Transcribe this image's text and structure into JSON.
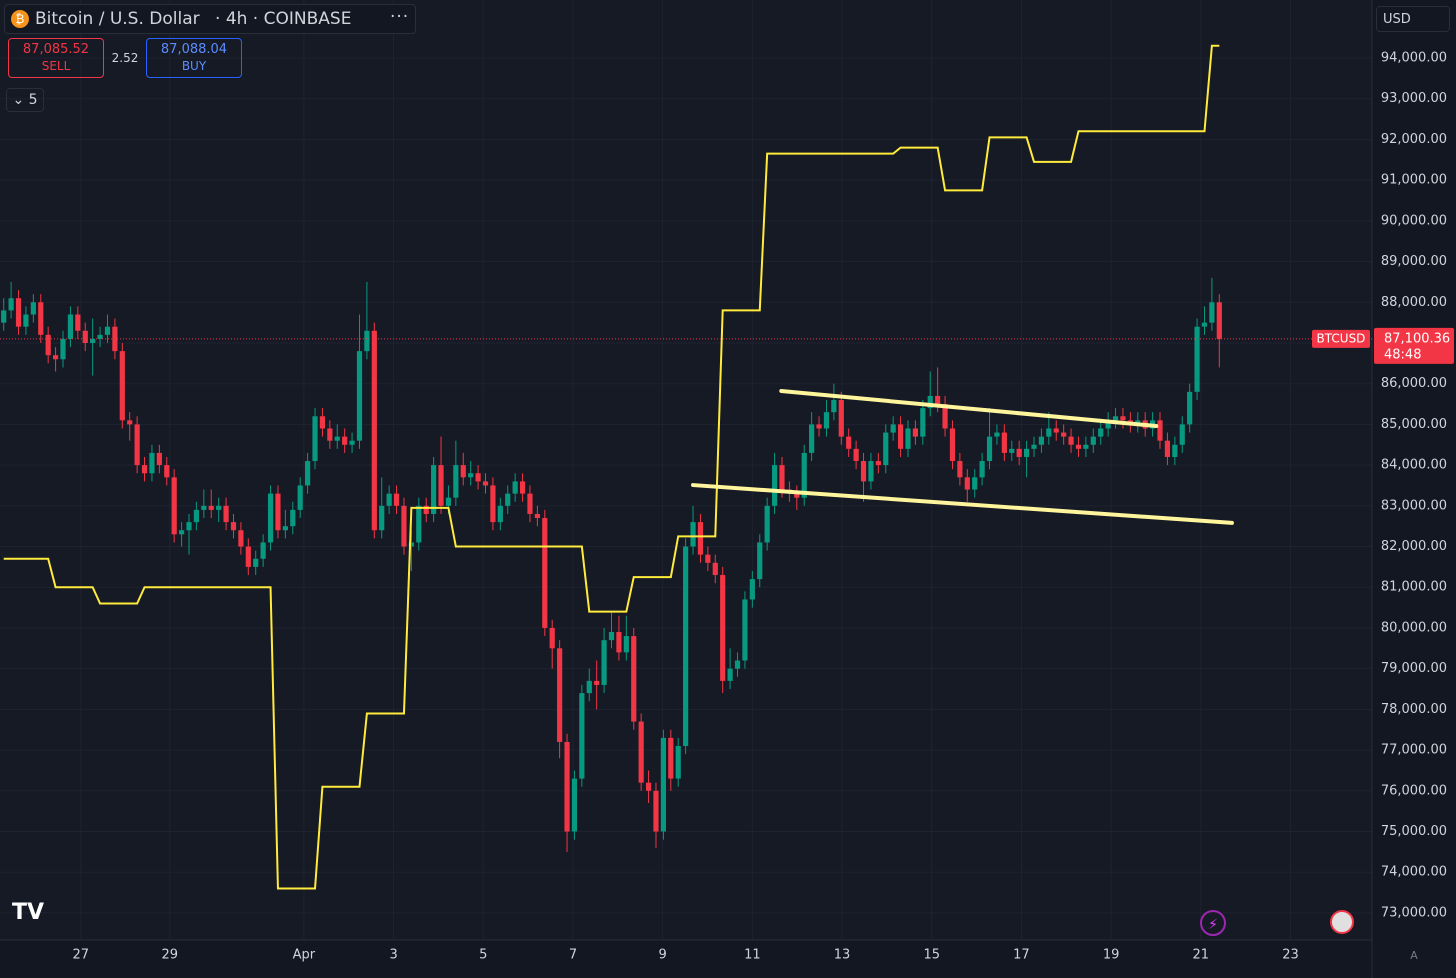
{
  "chart_data": {
    "type": "candlestick",
    "symbol_title": "Bitcoin / U.S. Dollar",
    "interval": "4h",
    "exchange": "COINBASE",
    "up_color": "#089981",
    "down_color": "#f23645",
    "grid": true,
    "xlim": [
      -0.5,
      184.6
    ],
    "ylim": [
      72335,
      95425
    ],
    "xticks": [
      {
        "value": 10.4,
        "label": "27"
      },
      {
        "value": 22.4,
        "label": "29"
      },
      {
        "value": 40.5,
        "label": "Apr"
      },
      {
        "value": 52.6,
        "label": "3"
      },
      {
        "value": 64.7,
        "label": "5"
      },
      {
        "value": 76.8,
        "label": "7"
      },
      {
        "value": 88.9,
        "label": "9"
      },
      {
        "value": 101,
        "label": "11"
      },
      {
        "value": 113.1,
        "label": "13"
      },
      {
        "value": 125.2,
        "label": "15"
      },
      {
        "value": 137.3,
        "label": "17"
      },
      {
        "value": 149.4,
        "label": "19"
      },
      {
        "value": 161.5,
        "label": "21"
      },
      {
        "value": 173.6,
        "label": "23"
      }
    ],
    "yticks": [
      {
        "value": 73000,
        "label": "73,000.00"
      },
      {
        "value": 74000,
        "label": "74,000.00"
      },
      {
        "value": 75000,
        "label": "75,000.00"
      },
      {
        "value": 76000,
        "label": "76,000.00"
      },
      {
        "value": 77000,
        "label": "77,000.00"
      },
      {
        "value": 78000,
        "label": "78,000.00"
      },
      {
        "value": 79000,
        "label": "79,000.00"
      },
      {
        "value": 80000,
        "label": "80,000.00"
      },
      {
        "value": 81000,
        "label": "81,000.00"
      },
      {
        "value": 82000,
        "label": "82,000.00"
      },
      {
        "value": 83000,
        "label": "83,000.00"
      },
      {
        "value": 84000,
        "label": "84,000.00"
      },
      {
        "value": 85000,
        "label": "85,000.00"
      },
      {
        "value": 86000,
        "label": "86,000.00"
      },
      {
        "value": 87000,
        "label": "87,000.00"
      },
      {
        "value": 88000,
        "label": "88,000.00"
      },
      {
        "value": 89000,
        "label": "89,000.00"
      },
      {
        "value": 90000,
        "label": "90,000.00"
      },
      {
        "value": 91000,
        "label": "91,000.00"
      },
      {
        "value": 92000,
        "label": "92,000.00"
      },
      {
        "value": 93000,
        "label": "93,000.00"
      },
      {
        "value": 94000,
        "label": "94,000.00"
      }
    ],
    "candles": [
      [
        87500,
        88100,
        87300,
        87800
      ],
      [
        87800,
        88500,
        87600,
        88100
      ],
      [
        88100,
        88300,
        87200,
        87400
      ],
      [
        87400,
        87900,
        87200,
        87700
      ],
      [
        87700,
        88200,
        87500,
        88000
      ],
      [
        88000,
        88200,
        87000,
        87200
      ],
      [
        87200,
        87400,
        86500,
        86700
      ],
      [
        86700,
        86900,
        86300,
        86600
      ],
      [
        86600,
        87300,
        86400,
        87100
      ],
      [
        87100,
        87900,
        86900,
        87700
      ],
      [
        87700,
        87900,
        87100,
        87300
      ],
      [
        87300,
        87500,
        86800,
        87000
      ],
      [
        87000,
        87600,
        86200,
        87100
      ],
      [
        87100,
        87400,
        86900,
        87200
      ],
      [
        87200,
        87700,
        87000,
        87400
      ],
      [
        87400,
        87600,
        86600,
        86800
      ],
      [
        86800,
        87000,
        84900,
        85100
      ],
      [
        85100,
        85300,
        84600,
        85000
      ],
      [
        85000,
        85200,
        83800,
        84000
      ],
      [
        84000,
        84200,
        83600,
        83800
      ],
      [
        83800,
        84500,
        83600,
        84300
      ],
      [
        84300,
        84500,
        83800,
        84000
      ],
      [
        84000,
        84200,
        83500,
        83700
      ],
      [
        83700,
        83900,
        82100,
        82300
      ],
      [
        82300,
        82600,
        82000,
        82400
      ],
      [
        82400,
        82800,
        81800,
        82600
      ],
      [
        82600,
        83100,
        82400,
        82900
      ],
      [
        82900,
        83400,
        82700,
        83000
      ],
      [
        83000,
        83400,
        82700,
        82900
      ],
      [
        82900,
        83200,
        82600,
        83000
      ],
      [
        83000,
        83200,
        82400,
        82600
      ],
      [
        82600,
        82800,
        82200,
        82400
      ],
      [
        82400,
        82600,
        81800,
        82000
      ],
      [
        82000,
        82200,
        81300,
        81500
      ],
      [
        81500,
        81900,
        81300,
        81700
      ],
      [
        81700,
        82300,
        81500,
        82100
      ],
      [
        82100,
        83500,
        81900,
        83300
      ],
      [
        83300,
        83500,
        82200,
        82400
      ],
      [
        82400,
        82900,
        82200,
        82500
      ],
      [
        82500,
        83100,
        82300,
        82900
      ],
      [
        82900,
        83700,
        82700,
        83500
      ],
      [
        83500,
        84300,
        83300,
        84100
      ],
      [
        84100,
        85400,
        83900,
        85200
      ],
      [
        85200,
        85400,
        84700,
        84900
      ],
      [
        84900,
        85100,
        84400,
        84600
      ],
      [
        84600,
        85000,
        84400,
        84700
      ],
      [
        84700,
        84900,
        84300,
        84500
      ],
      [
        84500,
        84800,
        84300,
        84600
      ],
      [
        84600,
        87700,
        84400,
        86800
      ],
      [
        86800,
        88500,
        86600,
        87300
      ],
      [
        87300,
        87500,
        82200,
        82400
      ],
      [
        82400,
        83700,
        82200,
        83000
      ],
      [
        83000,
        83500,
        82800,
        83300
      ],
      [
        83300,
        83500,
        82800,
        83000
      ],
      [
        83000,
        83200,
        81800,
        82000
      ],
      [
        82000,
        82400,
        81400,
        82100
      ],
      [
        82100,
        83200,
        81900,
        83000
      ],
      [
        83000,
        83200,
        82600,
        82800
      ],
      [
        82800,
        84200,
        82600,
        84000
      ],
      [
        84000,
        84700,
        82800,
        83000
      ],
      [
        83000,
        83500,
        82800,
        83200
      ],
      [
        83200,
        84600,
        83000,
        84000
      ],
      [
        84000,
        84300,
        83500,
        83700
      ],
      [
        83700,
        84100,
        83500,
        83800
      ],
      [
        83800,
        84000,
        83400,
        83600
      ],
      [
        83600,
        83800,
        83300,
        83500
      ],
      [
        83500,
        83700,
        82400,
        82600
      ],
      [
        82600,
        83200,
        82400,
        83000
      ],
      [
        83000,
        83500,
        82800,
        83300
      ],
      [
        83300,
        83800,
        83100,
        83600
      ],
      [
        83600,
        83800,
        83100,
        83300
      ],
      [
        83300,
        83500,
        82600,
        82800
      ],
      [
        82800,
        83000,
        82500,
        82700
      ],
      [
        82700,
        82900,
        79800,
        80000
      ],
      [
        80000,
        80200,
        79000,
        79500
      ],
      [
        79500,
        79700,
        76800,
        77200
      ],
      [
        77200,
        77400,
        74500,
        75000
      ],
      [
        75000,
        76500,
        74800,
        76300
      ],
      [
        76300,
        78600,
        76100,
        78400
      ],
      [
        78400,
        79000,
        78200,
        78700
      ],
      [
        78700,
        79200,
        78000,
        78600
      ],
      [
        78600,
        80000,
        78400,
        79700
      ],
      [
        79700,
        80400,
        79500,
        79900
      ],
      [
        79900,
        80300,
        79200,
        79400
      ],
      [
        79400,
        80300,
        79200,
        79800
      ],
      [
        79800,
        80000,
        77500,
        77700
      ],
      [
        77700,
        77900,
        76000,
        76200
      ],
      [
        76200,
        76500,
        75700,
        76000
      ],
      [
        76000,
        76200,
        74600,
        75000
      ],
      [
        75000,
        77500,
        74800,
        77300
      ],
      [
        77300,
        77500,
        76000,
        76300
      ],
      [
        76300,
        77300,
        76100,
        77100
      ],
      [
        77100,
        82200,
        76900,
        82000
      ],
      [
        82000,
        83000,
        81800,
        82600
      ],
      [
        82600,
        82800,
        81600,
        81800
      ],
      [
        81800,
        82000,
        81400,
        81600
      ],
      [
        81600,
        81800,
        81100,
        81300
      ],
      [
        81300,
        81500,
        78400,
        78700
      ],
      [
        78700,
        79500,
        78500,
        79000
      ],
      [
        79000,
        79400,
        78800,
        79200
      ],
      [
        79200,
        80900,
        79000,
        80700
      ],
      [
        80700,
        81400,
        80500,
        81200
      ],
      [
        81200,
        82300,
        81000,
        82100
      ],
      [
        82100,
        83200,
        81900,
        83000
      ],
      [
        83000,
        84300,
        82800,
        84000
      ],
      [
        84000,
        84200,
        83200,
        83400
      ],
      [
        83400,
        83600,
        83100,
        83300
      ],
      [
        83300,
        83500,
        82900,
        83200
      ],
      [
        83200,
        84500,
        83000,
        84300
      ],
      [
        84300,
        85300,
        84100,
        85000
      ],
      [
        85000,
        85200,
        84700,
        84900
      ],
      [
        84900,
        85600,
        84700,
        85300
      ],
      [
        85300,
        86000,
        85100,
        85600
      ],
      [
        85600,
        85800,
        84500,
        84700
      ],
      [
        84700,
        84900,
        84200,
        84400
      ],
      [
        84400,
        84600,
        83900,
        84100
      ],
      [
        84100,
        84300,
        83100,
        83600
      ],
      [
        83600,
        84300,
        83400,
        84100
      ],
      [
        84100,
        84300,
        83800,
        84000
      ],
      [
        84000,
        85000,
        83800,
        84800
      ],
      [
        84800,
        85200,
        84600,
        85000
      ],
      [
        85000,
        85200,
        84200,
        84400
      ],
      [
        84400,
        85100,
        84200,
        84900
      ],
      [
        84900,
        85100,
        84500,
        84700
      ],
      [
        84700,
        85600,
        84500,
        85400
      ],
      [
        85400,
        86300,
        85200,
        85700
      ],
      [
        85700,
        86400,
        85300,
        85500
      ],
      [
        85500,
        85700,
        84700,
        84900
      ],
      [
        84900,
        85100,
        83900,
        84100
      ],
      [
        84100,
        84300,
        83500,
        83700
      ],
      [
        83700,
        83900,
        83100,
        83400
      ],
      [
        83400,
        83900,
        83200,
        83700
      ],
      [
        83700,
        84300,
        83500,
        84100
      ],
      [
        84100,
        85400,
        83900,
        84700
      ],
      [
        84700,
        85000,
        84500,
        84800
      ],
      [
        84800,
        85000,
        84100,
        84300
      ],
      [
        84300,
        84600,
        84100,
        84400
      ],
      [
        84400,
        84600,
        84000,
        84200
      ],
      [
        84200,
        84600,
        83700,
        84400
      ],
      [
        84400,
        84700,
        84200,
        84500
      ],
      [
        84500,
        84900,
        84300,
        84700
      ],
      [
        84700,
        85300,
        84500,
        84900
      ],
      [
        84900,
        85100,
        84600,
        84800
      ],
      [
        84800,
        85000,
        84500,
        84700
      ],
      [
        84700,
        84900,
        84300,
        84500
      ],
      [
        84500,
        84700,
        84200,
        84400
      ],
      [
        84400,
        84700,
        84200,
        84500
      ],
      [
        84500,
        84900,
        84300,
        84700
      ],
      [
        84700,
        85100,
        84500,
        84900
      ],
      [
        84900,
        85300,
        84700,
        85100
      ],
      [
        85100,
        85400,
        84900,
        85200
      ],
      [
        85200,
        85400,
        84900,
        85100
      ],
      [
        85100,
        85300,
        84800,
        85000
      ],
      [
        85000,
        85300,
        84800,
        85100
      ],
      [
        85100,
        85300,
        84700,
        84900
      ],
      [
        84900,
        85300,
        84700,
        85100
      ],
      [
        85100,
        85300,
        84400,
        84600
      ],
      [
        84600,
        84800,
        84000,
        84200
      ],
      [
        84200,
        84700,
        84000,
        84500
      ],
      [
        84500,
        85200,
        84300,
        85000
      ],
      [
        85000,
        86000,
        84800,
        85800
      ],
      [
        85800,
        87600,
        85600,
        87400
      ],
      [
        87400,
        87900,
        87200,
        87500
      ],
      [
        87500,
        88600,
        87300,
        88000
      ],
      [
        88000,
        88200,
        86400,
        87100.36
      ]
    ],
    "series": [
      {
        "color": "#ffeb3b",
        "values": [
          81700,
          81700,
          81700,
          81700,
          81700,
          81700,
          81700,
          81000,
          81000,
          81000,
          81000,
          81000,
          81000,
          80600,
          80600,
          80600,
          80600,
          80600,
          80600,
          81000,
          81000,
          81000,
          81000,
          81000,
          81000,
          81000,
          81000,
          81000,
          81000,
          81000,
          81000,
          81000,
          81000,
          81000,
          81000,
          81000,
          81000,
          73600,
          73600,
          73600,
          73600,
          73600,
          73600,
          76100,
          76100,
          76100,
          76100,
          76100,
          76100,
          77900,
          77900,
          77900,
          77900,
          77900,
          77900,
          82950,
          82950,
          82950,
          82950,
          82950,
          82950,
          82000,
          82000,
          82000,
          82000,
          82000,
          82000,
          82000,
          82000,
          82000,
          82000,
          82000,
          82000,
          82000,
          82000,
          82000,
          82000,
          82000,
          82000,
          80400,
          80400,
          80400,
          80400,
          80400,
          80400,
          81250,
          81250,
          81250,
          81250,
          81250,
          81250,
          82250,
          82250,
          82250,
          82250,
          82250,
          82250,
          87800,
          87800,
          87800,
          87800,
          87800,
          87800,
          91650,
          91650,
          91650,
          91650,
          91650,
          91650,
          91650,
          91650,
          91650,
          91650,
          91650,
          91650,
          91650,
          91650,
          91650,
          91650,
          91650,
          91650,
          91800,
          91800,
          91800,
          91800,
          91800,
          91800,
          90750,
          90750,
          90750,
          90750,
          90750,
          90750,
          92050,
          92050,
          92050,
          92050,
          92050,
          92050,
          91450,
          91450,
          91450,
          91450,
          91450,
          91450,
          92200,
          92200,
          92200,
          92200,
          92200,
          92200,
          92200,
          92200,
          92200,
          92200,
          92200,
          92200,
          92200,
          92200,
          92200,
          92200,
          92200,
          92200,
          94300,
          94300
        ]
      }
    ],
    "trend_lines": [
      {
        "color": "#fff59d",
        "x": [
          104.9,
          155.5
        ],
        "y": [
          85820,
          84960
        ]
      },
      {
        "color": "#fff59d",
        "x": [
          93,
          165.7
        ],
        "y": [
          83510,
          82580
        ]
      }
    ],
    "price_line": {
      "symbol": "BTCUSD",
      "value": 87100.36,
      "label": "87,100.36",
      "countdown": "48:48",
      "color": "#f23645"
    }
  },
  "trade": {
    "sell_price": "87,085.52",
    "sell": "SELL",
    "spread": "2.52",
    "buy_price": "87,088.04",
    "buy": "BUY"
  },
  "ui": {
    "indicators_count": "5",
    "currency": "USD",
    "auto": "A"
  }
}
